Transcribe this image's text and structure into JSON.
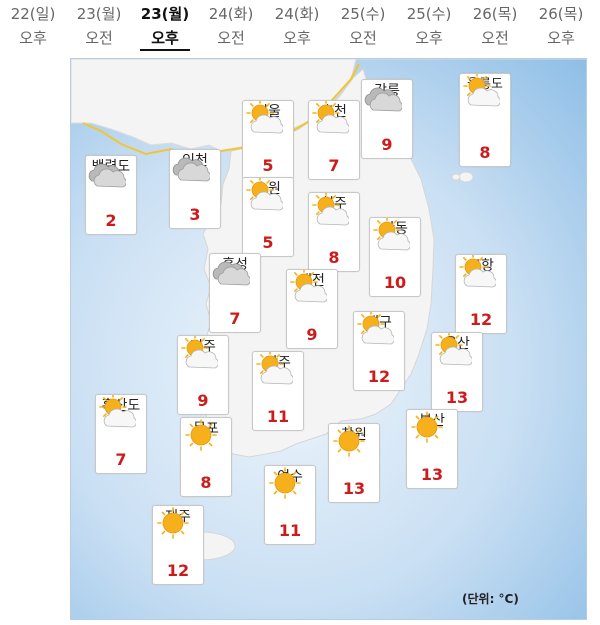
{
  "tabs": [
    {
      "date": "22(일)",
      "period": "오후"
    },
    {
      "date": "23(월)",
      "period": "오전"
    },
    {
      "date": "23(월)",
      "period": "오후",
      "active": true
    },
    {
      "date": "24(화)",
      "period": "오전"
    },
    {
      "date": "24(화)",
      "period": "오후"
    },
    {
      "date": "25(수)",
      "period": "오전"
    },
    {
      "date": "25(수)",
      "period": "오후"
    },
    {
      "date": "26(목)",
      "period": "오전"
    },
    {
      "date": "26(목)",
      "period": "오후"
    }
  ],
  "cities": [
    {
      "name": "백령도",
      "icon": "cloudy-icon",
      "temp": "2"
    },
    {
      "name": "인천",
      "icon": "cloudy-icon",
      "temp": "3"
    },
    {
      "name": "서울",
      "icon": "partly-cloudy-icon",
      "temp": "5"
    },
    {
      "name": "춘천",
      "icon": "partly-cloudy-icon",
      "temp": "7"
    },
    {
      "name": "강릉",
      "icon": "cloudy-icon",
      "temp": "9"
    },
    {
      "name": "울릉도\n독도",
      "icon": "partly-cloudy-icon",
      "temp": "8"
    },
    {
      "name": "수원",
      "icon": "partly-cloudy-icon",
      "temp": "5"
    },
    {
      "name": "청주",
      "icon": "partly-cloudy-icon",
      "temp": "8"
    },
    {
      "name": "안동",
      "icon": "partly-cloudy-icon",
      "temp": "10"
    },
    {
      "name": "홍성",
      "icon": "cloudy-icon",
      "temp": "7"
    },
    {
      "name": "대전",
      "icon": "partly-cloudy-icon",
      "temp": "9"
    },
    {
      "name": "포항",
      "icon": "partly-cloudy-icon",
      "temp": "12"
    },
    {
      "name": "대구",
      "icon": "partly-cloudy-icon",
      "temp": "12"
    },
    {
      "name": "전주",
      "icon": "partly-cloudy-icon",
      "temp": "9"
    },
    {
      "name": "울산",
      "icon": "partly-cloudy-icon",
      "temp": "13"
    },
    {
      "name": "광주",
      "icon": "partly-cloudy-icon",
      "temp": "11"
    },
    {
      "name": "흑산도",
      "icon": "partly-cloudy-icon",
      "temp": "7"
    },
    {
      "name": "목포",
      "icon": "sunny-icon",
      "temp": "8"
    },
    {
      "name": "창원",
      "icon": "sunny-icon",
      "temp": "13"
    },
    {
      "name": "부산",
      "icon": "sunny-icon",
      "temp": "13"
    },
    {
      "name": "여수",
      "icon": "sunny-icon",
      "temp": "11"
    },
    {
      "name": "제주",
      "icon": "sunny-icon",
      "temp": "12"
    }
  ],
  "unit_label": "(단위: °C)",
  "colors": {
    "temp": "#cc1b1b",
    "sea": "#a9cdeb",
    "land": "#f4f4f4",
    "border_line": "#f2c531"
  }
}
